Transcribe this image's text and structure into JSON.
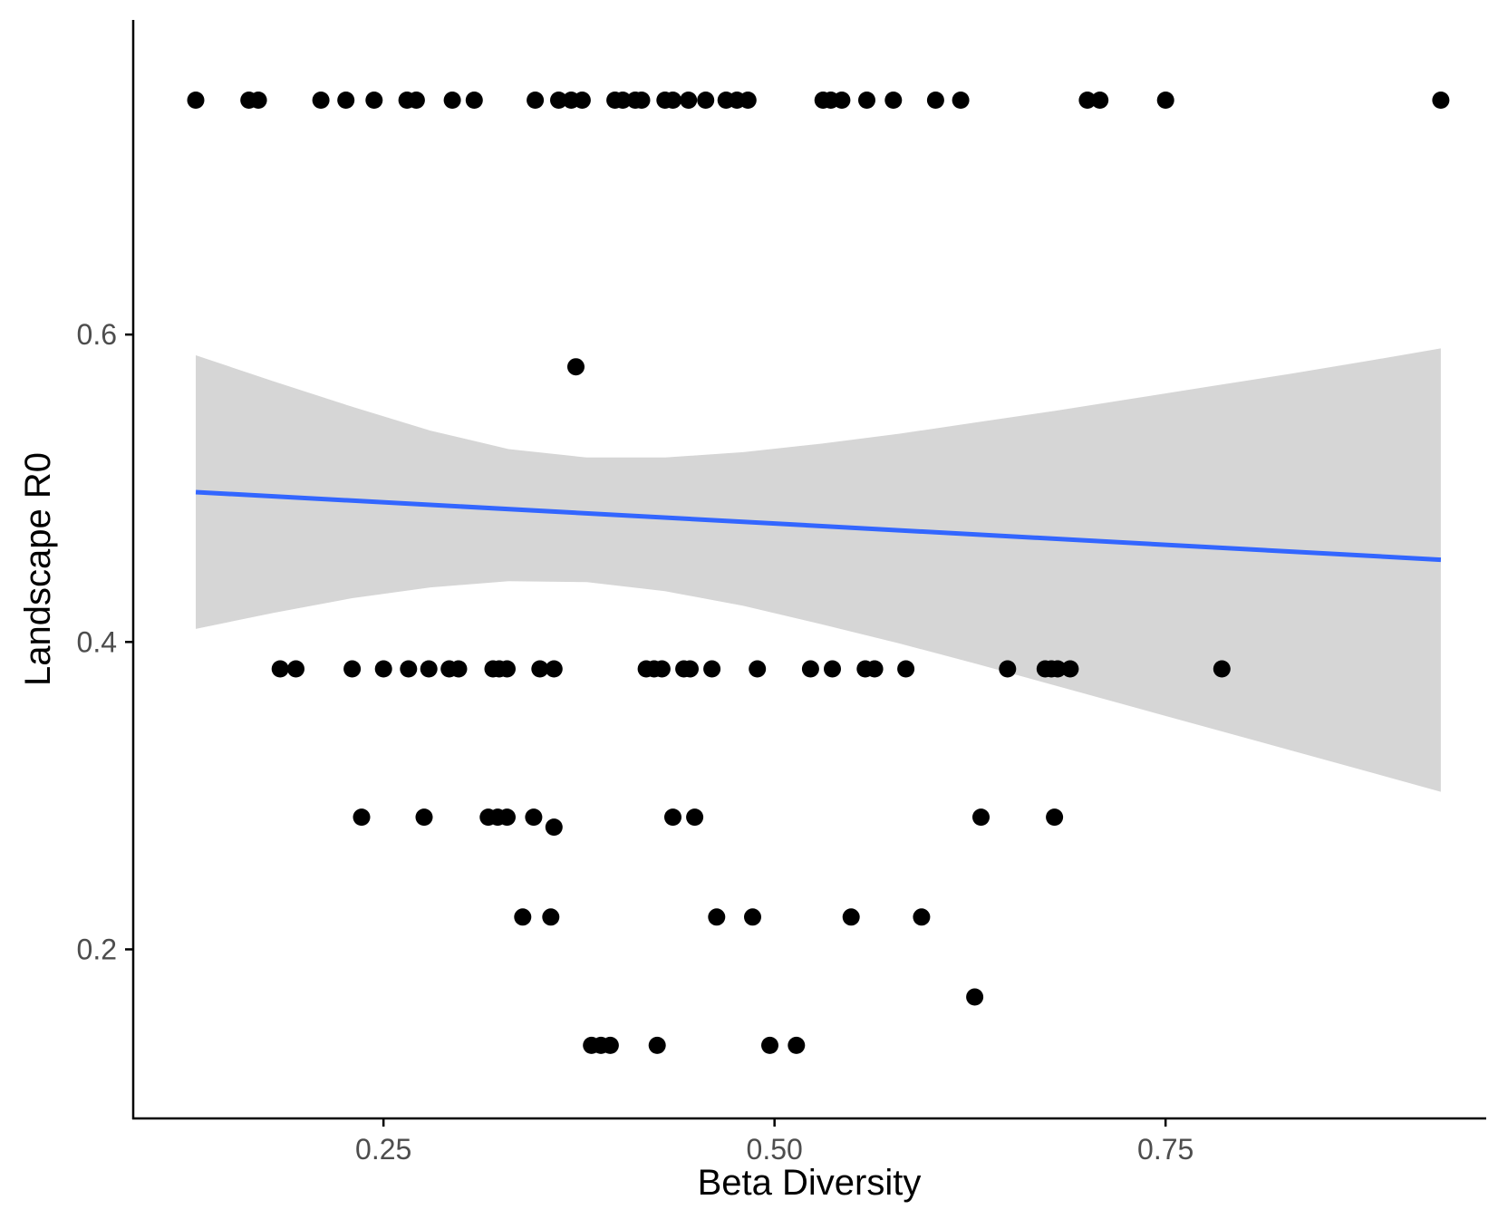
{
  "chart_data": {
    "type": "scatter",
    "title": "",
    "xlabel": "Beta Diversity",
    "ylabel": "Landscape R0",
    "xlim": [
      0.09,
      0.955
    ],
    "ylim": [
      0.09,
      0.8047
    ],
    "x_ticks": [
      0.25,
      0.5,
      0.75
    ],
    "x_tick_labels": [
      "0.25",
      "0.50",
      "0.75"
    ],
    "y_ticks": [
      0.2,
      0.4,
      0.6
    ],
    "y_tick_labels": [
      "0.2",
      "0.4",
      "0.6"
    ],
    "grid": false,
    "legend": "none",
    "colors": {
      "points": "#000000",
      "fit_line": "#3366FF",
      "ribbon": "#D6D6D6",
      "axis": "#000000",
      "tick_text": "#4D4D4D"
    },
    "series": [
      {
        "name": "observations",
        "points": [
          [
            0.13,
            0.7525
          ],
          [
            0.164,
            0.7525
          ],
          [
            0.17,
            0.7525
          ],
          [
            0.21,
            0.7525
          ],
          [
            0.226,
            0.7525
          ],
          [
            0.244,
            0.7525
          ],
          [
            0.265,
            0.7525
          ],
          [
            0.271,
            0.7525
          ],
          [
            0.294,
            0.7525
          ],
          [
            0.308,
            0.7525
          ],
          [
            0.347,
            0.7525
          ],
          [
            0.362,
            0.7525
          ],
          [
            0.37,
            0.7525
          ],
          [
            0.377,
            0.7525
          ],
          [
            0.398,
            0.7525
          ],
          [
            0.403,
            0.7525
          ],
          [
            0.411,
            0.7525
          ],
          [
            0.415,
            0.7525
          ],
          [
            0.43,
            0.7525
          ],
          [
            0.435,
            0.7525
          ],
          [
            0.445,
            0.7525
          ],
          [
            0.456,
            0.7525
          ],
          [
            0.469,
            0.7525
          ],
          [
            0.476,
            0.7525
          ],
          [
            0.483,
            0.7525
          ],
          [
            0.531,
            0.7525
          ],
          [
            0.536,
            0.7525
          ],
          [
            0.543,
            0.7525
          ],
          [
            0.559,
            0.7525
          ],
          [
            0.576,
            0.7525
          ],
          [
            0.603,
            0.7525
          ],
          [
            0.619,
            0.7525
          ],
          [
            0.7,
            0.7525
          ],
          [
            0.708,
            0.7525
          ],
          [
            0.75,
            0.7525
          ],
          [
            0.926,
            0.7525
          ],
          [
            0.373,
            0.579
          ],
          [
            0.184,
            0.3825
          ],
          [
            0.194,
            0.3825
          ],
          [
            0.23,
            0.3825
          ],
          [
            0.25,
            0.3825
          ],
          [
            0.266,
            0.3825
          ],
          [
            0.279,
            0.3825
          ],
          [
            0.292,
            0.3825
          ],
          [
            0.298,
            0.3825
          ],
          [
            0.32,
            0.3825
          ],
          [
            0.324,
            0.3825
          ],
          [
            0.329,
            0.3825
          ],
          [
            0.35,
            0.3825
          ],
          [
            0.359,
            0.3825
          ],
          [
            0.418,
            0.3825
          ],
          [
            0.423,
            0.3825
          ],
          [
            0.428,
            0.3825
          ],
          [
            0.442,
            0.3825
          ],
          [
            0.446,
            0.3825
          ],
          [
            0.46,
            0.3825
          ],
          [
            0.489,
            0.3825
          ],
          [
            0.523,
            0.3825
          ],
          [
            0.537,
            0.3825
          ],
          [
            0.558,
            0.3825
          ],
          [
            0.564,
            0.3825
          ],
          [
            0.584,
            0.3825
          ],
          [
            0.649,
            0.3825
          ],
          [
            0.673,
            0.3825
          ],
          [
            0.677,
            0.3825
          ],
          [
            0.681,
            0.3825
          ],
          [
            0.689,
            0.3825
          ],
          [
            0.786,
            0.3825
          ],
          [
            0.236,
            0.286
          ],
          [
            0.276,
            0.286
          ],
          [
            0.317,
            0.286
          ],
          [
            0.323,
            0.286
          ],
          [
            0.329,
            0.286
          ],
          [
            0.346,
            0.286
          ],
          [
            0.435,
            0.286
          ],
          [
            0.449,
            0.286
          ],
          [
            0.632,
            0.286
          ],
          [
            0.679,
            0.286
          ],
          [
            0.359,
            0.2795
          ],
          [
            0.339,
            0.221
          ],
          [
            0.357,
            0.221
          ],
          [
            0.463,
            0.221
          ],
          [
            0.486,
            0.221
          ],
          [
            0.549,
            0.221
          ],
          [
            0.594,
            0.221
          ],
          [
            0.628,
            0.169
          ],
          [
            0.383,
            0.1375
          ],
          [
            0.389,
            0.1375
          ],
          [
            0.395,
            0.1375
          ],
          [
            0.425,
            0.1375
          ],
          [
            0.497,
            0.1375
          ],
          [
            0.514,
            0.1375
          ]
        ]
      }
    ],
    "fit": {
      "method": "linear",
      "x": [
        0.13,
        0.926
      ],
      "y": [
        0.4975,
        0.4535
      ]
    },
    "confidence_band": {
      "x": [
        0.13,
        0.18,
        0.23,
        0.28,
        0.33,
        0.38,
        0.43,
        0.48,
        0.53,
        0.58,
        0.63,
        0.68,
        0.73,
        0.78,
        0.83,
        0.88,
        0.926
      ],
      "upper": [
        0.5865,
        0.5695,
        0.553,
        0.5375,
        0.5255,
        0.52,
        0.52,
        0.5235,
        0.529,
        0.5355,
        0.543,
        0.5505,
        0.5585,
        0.5665,
        0.5745,
        0.583,
        0.591
      ],
      "lower": [
        0.4085,
        0.419,
        0.4285,
        0.4355,
        0.4395,
        0.439,
        0.433,
        0.4235,
        0.4115,
        0.399,
        0.3855,
        0.3715,
        0.3575,
        0.3435,
        0.3295,
        0.3155,
        0.3025
      ]
    }
  }
}
